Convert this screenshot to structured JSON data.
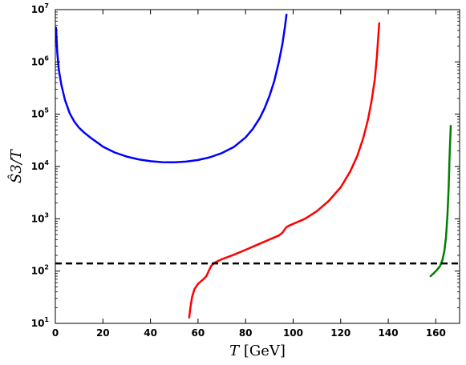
{
  "chart_data": {
    "type": "line",
    "xlabel": "T [GeV]",
    "ylabel": "Ŝ3/T",
    "xlim": [
      0,
      170
    ],
    "ylim": [
      10,
      10000000
    ],
    "yscale": "log",
    "grid": false,
    "xticks": [
      "0",
      "20",
      "40",
      "60",
      "80",
      "100",
      "120",
      "140",
      "160"
    ],
    "yticks": [
      {
        "base": "10",
        "exp": "1"
      },
      {
        "base": "10",
        "exp": "2"
      },
      {
        "base": "10",
        "exp": "3"
      },
      {
        "base": "10",
        "exp": "4"
      },
      {
        "base": "10",
        "exp": "5"
      },
      {
        "base": "10",
        "exp": "6"
      },
      {
        "base": "10",
        "exp": "7"
      }
    ],
    "series": [
      {
        "color": "#0000ff",
        "style": "solid",
        "points": [
          [
            0.3,
            4500000
          ],
          [
            0.8,
            1500000
          ],
          [
            1.5,
            700000
          ],
          [
            2.5,
            370000
          ],
          [
            4,
            190000
          ],
          [
            6,
            105000
          ],
          [
            8,
            72000
          ],
          [
            10,
            55000
          ],
          [
            12,
            45000
          ],
          [
            15,
            35000
          ],
          [
            18,
            28000
          ],
          [
            20,
            24000
          ],
          [
            25,
            18500
          ],
          [
            30,
            15500
          ],
          [
            35,
            13700
          ],
          [
            40,
            12600
          ],
          [
            45,
            12100
          ],
          [
            48,
            12000
          ],
          [
            50,
            12000
          ],
          [
            55,
            12400
          ],
          [
            60,
            13300
          ],
          [
            65,
            15000
          ],
          [
            70,
            18000
          ],
          [
            75,
            23500
          ],
          [
            80,
            36000
          ],
          [
            83,
            52000
          ],
          [
            86,
            85000
          ],
          [
            88,
            130000
          ],
          [
            90,
            220000
          ],
          [
            92,
            420000
          ],
          [
            94,
            1000000
          ],
          [
            95.5,
            2200000
          ],
          [
            96.5,
            4500000
          ],
          [
            97.2,
            8000000
          ]
        ]
      },
      {
        "color": "#ff0000",
        "style": "solid",
        "points": [
          [
            56.3,
            13
          ],
          [
            56.8,
            20
          ],
          [
            57.5,
            32
          ],
          [
            58.5,
            45
          ],
          [
            60,
            57
          ],
          [
            62,
            68
          ],
          [
            63.5,
            80
          ],
          [
            64.5,
            100
          ],
          [
            65.5,
            125
          ],
          [
            67,
            145
          ],
          [
            70,
            168
          ],
          [
            75,
            205
          ],
          [
            80,
            255
          ],
          [
            85,
            320
          ],
          [
            90,
            400
          ],
          [
            94,
            480
          ],
          [
            95.5,
            540
          ],
          [
            97,
            680
          ],
          [
            98,
            730
          ],
          [
            100,
            800
          ],
          [
            105,
            1000
          ],
          [
            110,
            1400
          ],
          [
            115,
            2200
          ],
          [
            120,
            4000
          ],
          [
            124,
            8000
          ],
          [
            127,
            16000
          ],
          [
            129.5,
            35000
          ],
          [
            131.5,
            80000
          ],
          [
            133,
            180000
          ],
          [
            134.3,
            450000
          ],
          [
            135.2,
            1200000
          ],
          [
            135.8,
            3000000
          ],
          [
            136.2,
            5500000
          ]
        ]
      },
      {
        "color": "#008000",
        "style": "solid",
        "points": [
          [
            157.8,
            80
          ],
          [
            159,
            90
          ],
          [
            160.5,
            105
          ],
          [
            161.8,
            125
          ],
          [
            162.8,
            165
          ],
          [
            163.6,
            240
          ],
          [
            164.3,
            450
          ],
          [
            164.9,
            1200
          ],
          [
            165.4,
            4000
          ],
          [
            165.8,
            15000
          ],
          [
            166.1,
            35000
          ],
          [
            166.3,
            60000
          ]
        ]
      },
      {
        "color": "#000000",
        "style": "dashed",
        "points": [
          [
            0,
            140
          ],
          [
            170,
            140
          ]
        ]
      }
    ]
  }
}
